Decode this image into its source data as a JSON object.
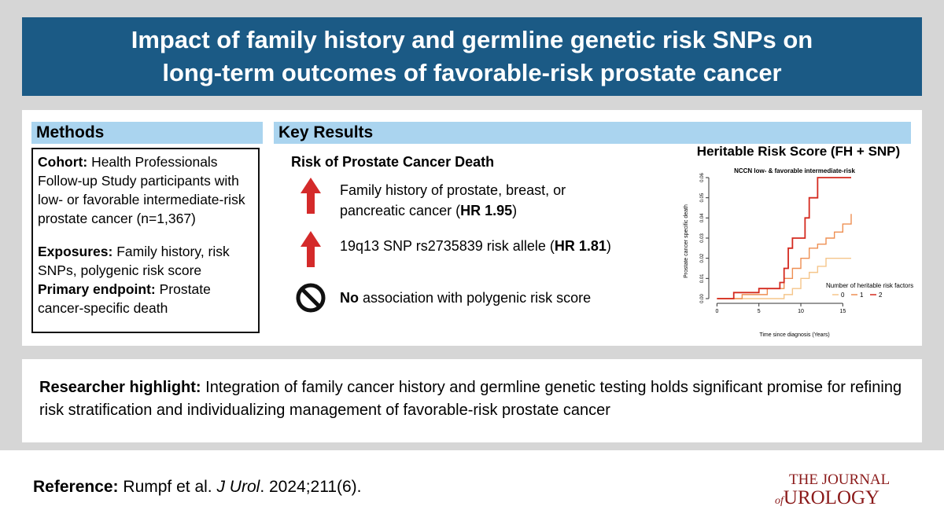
{
  "header": {
    "title_line1": "Impact of family history and germline genetic risk SNPs on",
    "title_line2": "long-term outcomes of favorable-risk prostate cancer"
  },
  "methods": {
    "heading": "Methods",
    "items": [
      {
        "label": "Cohort:",
        "text": "Health Professionals Follow-up Study participants with low- or favorable intermediate-risk prostate cancer (n=1,367)"
      },
      {
        "label": "Exposures:",
        "text": "Family history, risk SNPs, polygenic risk score"
      },
      {
        "label": "Primary endpoint:",
        "text": "Prostate cancer-specific death"
      }
    ]
  },
  "key_results": {
    "heading": "Key Results",
    "subheading": "Risk of Prostate Cancer Death",
    "items": [
      {
        "before": "Family history of prostate, breast, or pancreatic cancer (",
        "bold": "HR 1.95",
        "after": ")"
      },
      {
        "before": "19q13 SNP rs2735839 risk allele (",
        "bold": "HR 1.81",
        "after": ")"
      },
      {
        "bold": "No",
        "after": " association with polygenic risk score"
      }
    ]
  },
  "chart": {
    "heading": "Heritable Risk Score (FH + SNP)",
    "title": "NCCN low- & favorable intermediate-risk",
    "y_label": "Prostate cancer specific death",
    "x_label": "Time since diagnosis (Years)",
    "legend_title": "Number of heritable risk factors",
    "xlim": [
      -0.6,
      16
    ],
    "ylim": [
      0,
      0.06
    ],
    "xticks": [
      0,
      5,
      10,
      15
    ],
    "yticks": [
      {
        "value": 0,
        "label": "0.00"
      },
      {
        "value": 0.01,
        "label": "0.01"
      },
      {
        "value": 0.02,
        "label": "0.02"
      },
      {
        "value": 0.03,
        "label": "0.03"
      },
      {
        "value": 0.04,
        "label": "0.04"
      },
      {
        "value": 0.05,
        "label": "0.05"
      },
      {
        "value": 0.06,
        "label": "0.06"
      }
    ],
    "series": [
      {
        "name": "0",
        "color": "#f5c58a",
        "x": [
          0,
          5,
          8,
          9,
          10,
          11,
          12,
          13,
          16
        ],
        "values": [
          0,
          0,
          0.002,
          0.005,
          0.01,
          0.013,
          0.016,
          0.02,
          0.02
        ]
      },
      {
        "name": "1",
        "color": "#ee8f52",
        "x": [
          0,
          3,
          6,
          8,
          9,
          10,
          11,
          12,
          13,
          14,
          15,
          16
        ],
        "values": [
          0,
          0.002,
          0.005,
          0.01,
          0.015,
          0.02,
          0.025,
          0.027,
          0.03,
          0.033,
          0.037,
          0.042
        ]
      },
      {
        "name": "2",
        "color": "#d42a1f",
        "x": [
          0,
          2,
          5,
          7.5,
          8,
          8.5,
          9,
          10.5,
          11,
          12,
          16
        ],
        "values": [
          0,
          0.003,
          0.005,
          0.008,
          0.015,
          0.025,
          0.03,
          0.04,
          0.05,
          0.06,
          0.06
        ]
      }
    ]
  },
  "highlight": {
    "label": "Researcher highlight:",
    "text": "Integration of family cancer history and germline genetic testing holds significant promise for refining risk stratification and individualizing management of favorable-risk prostate cancer"
  },
  "reference": {
    "label": "Reference:",
    "authors": "Rumpf et al.",
    "journal": "J Urol",
    "citation": ". 2024;211(6)."
  },
  "logo": {
    "line1": "THE JOURNAL",
    "of": "of",
    "line2": "UROLOGY"
  }
}
